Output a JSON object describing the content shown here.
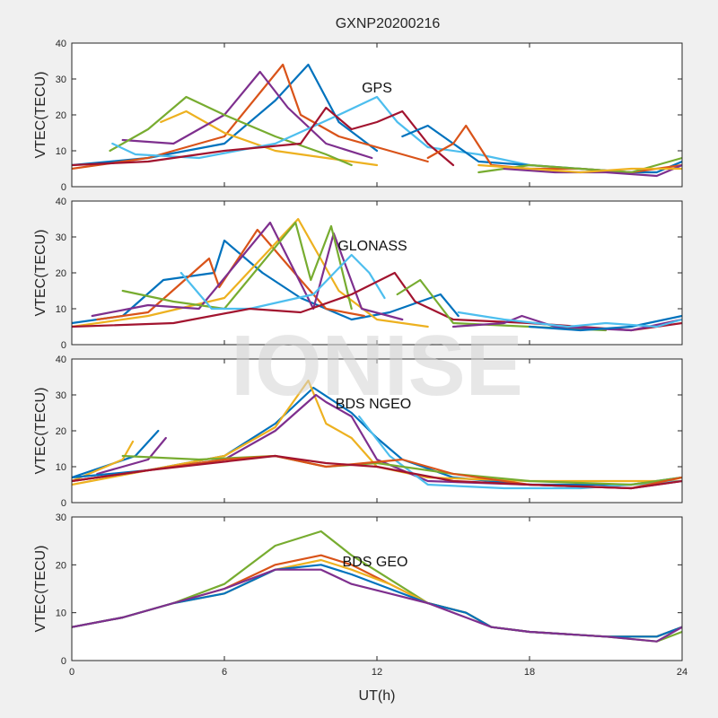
{
  "figure": {
    "title": "GXNP20200216",
    "xlabel": "UT(h)",
    "watermark": "IONISE"
  },
  "palette": [
    "#0072BD",
    "#D95319",
    "#EDB120",
    "#7E2F8E",
    "#77AC30",
    "#4DBEEE",
    "#A2142F"
  ],
  "chart_data": [
    {
      "type": "line",
      "title": "GPS",
      "ylabel": "VTEC(TECU)",
      "xlim": [
        0,
        24
      ],
      "ylim": [
        0,
        40
      ],
      "xticks": [
        0,
        6,
        12,
        18,
        24
      ],
      "yticks": [
        0,
        10,
        20,
        30,
        40
      ],
      "grid": false,
      "series": [
        {
          "color": "#0072BD",
          "x": [
            0,
            3,
            6,
            8,
            9.3,
            10.5,
            12
          ],
          "y": [
            6,
            8,
            12,
            24,
            34,
            18,
            10
          ]
        },
        {
          "color": "#D95319",
          "x": [
            0,
            3,
            6,
            8.3,
            9,
            10.5,
            13,
            14
          ],
          "y": [
            5,
            8,
            14,
            34,
            20,
            14,
            9,
            7
          ]
        },
        {
          "color": "#EDB120",
          "x": [
            3.5,
            4.5,
            6,
            8,
            10,
            12
          ],
          "y": [
            18,
            21,
            15,
            10,
            8,
            6
          ]
        },
        {
          "color": "#7E2F8E",
          "x": [
            2,
            4,
            6,
            7.4,
            8.5,
            10,
            11.8
          ],
          "y": [
            13,
            12,
            20,
            32,
            22,
            12,
            8
          ]
        },
        {
          "color": "#77AC30",
          "x": [
            1.5,
            3,
            4.5,
            6,
            8,
            10,
            11
          ],
          "y": [
            10,
            16,
            25,
            20,
            14,
            9,
            6
          ]
        },
        {
          "color": "#4DBEEE",
          "x": [
            1.6,
            2.5,
            5,
            8,
            10.5,
            12,
            12.8,
            14,
            16,
            18
          ],
          "y": [
            12,
            9,
            8,
            12,
            20,
            25,
            18,
            11,
            9,
            6
          ]
        },
        {
          "color": "#A2142F",
          "x": [
            0,
            3,
            6,
            9,
            10,
            11,
            12,
            13,
            14,
            15
          ],
          "y": [
            6,
            7,
            10,
            12,
            22,
            16,
            18,
            21,
            12,
            6
          ]
        },
        {
          "color": "#0072BD",
          "x": [
            13,
            14,
            15,
            16,
            18,
            20,
            22,
            23,
            24
          ],
          "y": [
            14,
            17,
            12,
            7,
            6,
            5,
            4,
            4,
            7
          ]
        },
        {
          "color": "#D95319",
          "x": [
            14,
            15,
            15.5,
            16.5,
            18,
            20,
            22,
            24
          ],
          "y": [
            8,
            12,
            17,
            6,
            5,
            5,
            4,
            6
          ]
        },
        {
          "color": "#77AC30",
          "x": [
            16,
            18,
            20,
            22,
            24
          ],
          "y": [
            4,
            6,
            5,
            4,
            8
          ]
        },
        {
          "color": "#7E2F8E",
          "x": [
            17,
            19,
            21,
            23,
            24
          ],
          "y": [
            5,
            4,
            4,
            3,
            6
          ]
        },
        {
          "color": "#EDB120",
          "x": [
            16,
            18,
            20,
            22,
            24
          ],
          "y": [
            6,
            5,
            4,
            5,
            5
          ]
        }
      ]
    },
    {
      "type": "line",
      "title": "GLONASS",
      "ylabel": "VTEC(TECU)",
      "xlim": [
        0,
        24
      ],
      "ylim": [
        0,
        40
      ],
      "xticks": [
        0,
        6,
        12,
        18,
        24
      ],
      "yticks": [
        0,
        10,
        20,
        30,
        40
      ],
      "grid": false,
      "series": [
        {
          "color": "#0072BD",
          "x": [
            0,
            2,
            3.6,
            5.6,
            6,
            7.5,
            9,
            11,
            12.5,
            14.5,
            15.2
          ],
          "y": [
            6,
            8,
            18,
            20,
            29,
            20,
            13,
            7,
            9,
            14,
            8
          ]
        },
        {
          "color": "#D95319",
          "x": [
            1,
            3,
            5.4,
            5.8,
            7.3,
            9,
            10,
            11.5
          ],
          "y": [
            7,
            9,
            24,
            16,
            32,
            18,
            10,
            8
          ]
        },
        {
          "color": "#EDB120",
          "x": [
            0,
            3,
            6,
            8.9,
            10.5,
            12,
            14
          ],
          "y": [
            5,
            8,
            13,
            35,
            15,
            7,
            5
          ]
        },
        {
          "color": "#7E2F8E",
          "x": [
            0.8,
            3,
            5,
            7.8,
            9.5,
            10.3,
            11.4,
            13
          ],
          "y": [
            8,
            11,
            10,
            34,
            10,
            31,
            10,
            7
          ]
        },
        {
          "color": "#77AC30",
          "x": [
            2,
            4,
            6,
            8.8,
            9.4,
            10.2,
            11
          ],
          "y": [
            15,
            12,
            10,
            34,
            18,
            33,
            10
          ]
        },
        {
          "color": "#4DBEEE",
          "x": [
            4.3,
            5.5,
            7,
            9.5,
            11,
            11.7,
            12.3
          ],
          "y": [
            20,
            10,
            10,
            14,
            25,
            20,
            13
          ]
        },
        {
          "color": "#A2142F",
          "x": [
            0,
            4,
            7,
            9,
            11,
            12.7,
            13.5,
            15,
            18,
            22,
            24
          ],
          "y": [
            5,
            6,
            10,
            9,
            14,
            20,
            12,
            7,
            6,
            4,
            6
          ]
        },
        {
          "color": "#77AC30",
          "x": [
            12.8,
            13.7,
            15,
            18,
            21
          ],
          "y": [
            14,
            18,
            6,
            5,
            4
          ]
        },
        {
          "color": "#7E2F8E",
          "x": [
            15,
            17,
            17.7,
            19,
            22,
            24
          ],
          "y": [
            5,
            6,
            8,
            5,
            4,
            7
          ]
        },
        {
          "color": "#0072BD",
          "x": [
            18,
            20,
            22,
            24
          ],
          "y": [
            5,
            4,
            5,
            8
          ]
        },
        {
          "color": "#4DBEEE",
          "x": [
            15.2,
            17,
            19.5,
            21,
            23,
            24
          ],
          "y": [
            9,
            7,
            5,
            6,
            5,
            7
          ]
        }
      ]
    },
    {
      "type": "line",
      "title": "BDS NGEO",
      "ylabel": "VTEC(TECU)",
      "xlim": [
        0,
        24
      ],
      "ylim": [
        0,
        40
      ],
      "xticks": [
        0,
        6,
        12,
        18,
        24
      ],
      "yticks": [
        0,
        10,
        20,
        30,
        40
      ],
      "grid": false,
      "series": [
        {
          "color": "#0072BD",
          "x": [
            0,
            2.5,
            3.4
          ],
          "y": [
            7,
            13,
            20
          ]
        },
        {
          "color": "#EDB120",
          "x": [
            0,
            2,
            2.4
          ],
          "y": [
            6,
            12,
            17
          ]
        },
        {
          "color": "#7E2F8E",
          "x": [
            1,
            3,
            3.7
          ],
          "y": [
            8,
            12,
            18
          ]
        },
        {
          "color": "#0072BD",
          "x": [
            0,
            3,
            6,
            8,
            9.5,
            11,
            12,
            13,
            15,
            18,
            22,
            24
          ],
          "y": [
            7,
            9,
            13,
            22,
            32,
            25,
            18,
            12,
            7,
            5,
            5,
            7
          ]
        },
        {
          "color": "#EDB120",
          "x": [
            0,
            3,
            6,
            8,
            9.3,
            10,
            11,
            12,
            14,
            18,
            22,
            24
          ],
          "y": [
            5,
            9,
            13,
            21,
            34,
            22,
            18,
            10,
            7,
            6,
            6,
            6
          ]
        },
        {
          "color": "#7E2F8E",
          "x": [
            0,
            3,
            6,
            8,
            9.6,
            10,
            11,
            12,
            14,
            18,
            22,
            24
          ],
          "y": [
            6,
            9,
            12,
            20,
            30,
            28,
            24,
            12,
            6,
            5,
            4,
            6
          ]
        },
        {
          "color": "#4DBEEE",
          "x": [
            11.3,
            12.5,
            14,
            17,
            20,
            22,
            24
          ],
          "y": [
            24,
            13,
            5,
            4,
            4,
            5,
            6
          ]
        },
        {
          "color": "#77AC30",
          "x": [
            2,
            5,
            8,
            10,
            12,
            15,
            18,
            22,
            24
          ],
          "y": [
            13,
            12,
            13,
            10,
            11,
            8,
            6,
            5,
            7
          ]
        },
        {
          "color": "#D95319",
          "x": [
            0,
            3,
            6,
            8,
            10,
            13,
            15,
            18,
            22,
            24
          ],
          "y": [
            6,
            9,
            12,
            13,
            10,
            12,
            8,
            5,
            4,
            7
          ]
        },
        {
          "color": "#A2142F",
          "x": [
            0,
            3,
            8,
            10,
            12,
            15,
            18,
            22,
            24
          ],
          "y": [
            6,
            9,
            13,
            11,
            10,
            6,
            5,
            4,
            6
          ]
        }
      ]
    },
    {
      "type": "line",
      "title": "BDS GEO",
      "ylabel": "VTEC(TECU)",
      "xlim": [
        0,
        24
      ],
      "ylim": [
        0,
        30
      ],
      "xticks": [
        0,
        6,
        12,
        18,
        24
      ],
      "yticks": [
        0,
        10,
        20,
        30
      ],
      "grid": false,
      "series": [
        {
          "color": "#77AC30",
          "x": [
            0,
            2,
            4,
            6,
            8,
            9.8,
            11,
            12.5,
            14,
            15.5,
            16.5,
            18,
            21,
            23,
            24
          ],
          "y": [
            7,
            9,
            12,
            16,
            24,
            27,
            22,
            17,
            12,
            10,
            7,
            6,
            5,
            4,
            6
          ]
        },
        {
          "color": "#D95319",
          "x": [
            0,
            2,
            4,
            6,
            8,
            9.8,
            11,
            12.5,
            14,
            15.5,
            16.5,
            18,
            21,
            23,
            24
          ],
          "y": [
            7,
            9,
            12,
            15,
            20,
            22,
            20,
            16,
            12,
            10,
            7,
            6,
            5,
            5,
            7
          ]
        },
        {
          "color": "#EDB120",
          "x": [
            0,
            2,
            4,
            6,
            8,
            9.8,
            11,
            12.5,
            14,
            15.5,
            16.5,
            18,
            21,
            23,
            24
          ],
          "y": [
            7,
            9,
            12,
            14,
            19,
            21,
            19,
            16,
            12,
            10,
            7,
            6,
            5,
            5,
            7
          ]
        },
        {
          "color": "#0072BD",
          "x": [
            0,
            2,
            4,
            6,
            8,
            9.8,
            11,
            12.5,
            14,
            15.5,
            16.5,
            18,
            21,
            23,
            24
          ],
          "y": [
            7,
            9,
            12,
            14,
            19,
            20,
            18,
            15,
            12,
            10,
            7,
            6,
            5,
            5,
            7
          ]
        },
        {
          "color": "#7E2F8E",
          "x": [
            0,
            2,
            4,
            6,
            8,
            9.8,
            11,
            12.5,
            14,
            15.5,
            16.5,
            18,
            21,
            23,
            24
          ],
          "y": [
            7,
            9,
            12,
            15,
            19,
            19,
            16,
            14,
            12,
            9,
            7,
            6,
            5,
            4,
            7
          ]
        }
      ]
    }
  ]
}
